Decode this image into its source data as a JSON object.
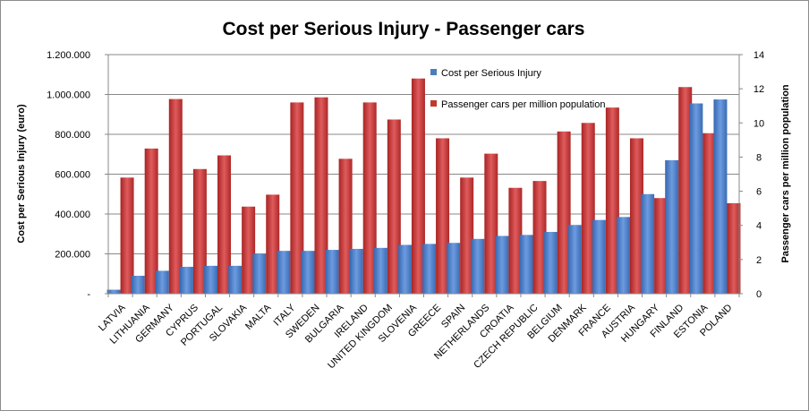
{
  "chart_data": {
    "type": "bar",
    "title": "Cost per Serious Injury - Passenger cars",
    "ylabel": "Cost per Serious Injury (euro)",
    "y2label": "Passenger cars per million population",
    "xlabel": "",
    "ylim": [
      0,
      1200000
    ],
    "y2lim": [
      0,
      14
    ],
    "y_ticks": [
      "-",
      "200.000",
      "400.000",
      "600.000",
      "800.000",
      "1.000.000",
      "1.200.000"
    ],
    "y2_ticks": [
      "0",
      "2",
      "4",
      "6",
      "8",
      "10",
      "12",
      "14"
    ],
    "grid": true,
    "legend_position": "top-center",
    "categories": [
      "LATVIA",
      "LITHUANIA",
      "GERMANY",
      "CYPRUS",
      "PORTUGAL",
      "SLOVAKIA",
      "MALTA",
      "ITALY",
      "SWEDEN",
      "BULGARIA",
      "IRELAND",
      "UNITED KINGDOM",
      "SLOVENIA",
      "GREECE",
      "SPAIN",
      "NETHERLANDS",
      "CROATIA",
      "CZECH REPUBLIC",
      "BELGIUM",
      "DENMARK",
      "FRANCE",
      "AUSTRIA",
      "HUNGARY",
      "FINLAND",
      "ESTONIA",
      "POLAND"
    ],
    "series": [
      {
        "name": "Cost per Serious Injury",
        "axis": "left",
        "color": "#4a7ebb",
        "values": [
          20000,
          90000,
          115000,
          135000,
          140000,
          140000,
          200000,
          215000,
          215000,
          220000,
          225000,
          230000,
          245000,
          250000,
          255000,
          275000,
          290000,
          295000,
          310000,
          345000,
          370000,
          385000,
          500000,
          670000,
          955000,
          975000
        ]
      },
      {
        "name": "Passenger cars per million population",
        "axis": "right",
        "color": "#c0392b",
        "values": [
          6.8,
          8.5,
          11.4,
          7.3,
          8.1,
          5.1,
          5.8,
          11.2,
          11.5,
          7.9,
          11.2,
          10.2,
          12.6,
          9.1,
          6.8,
          8.2,
          6.2,
          6.6,
          9.5,
          10.0,
          10.9,
          9.1,
          5.6,
          12.1,
          9.4,
          5.3
        ]
      }
    ]
  }
}
